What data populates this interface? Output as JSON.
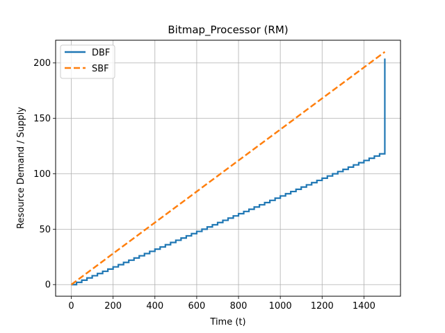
{
  "chart_data": {
    "type": "line",
    "title": "Bitmap_Processor (RM)",
    "xlabel": "Time (t)",
    "ylabel": "Resource Demand / Supply",
    "xlim": [
      -75,
      1575
    ],
    "ylim": [
      -10.5,
      220.5
    ],
    "x_ticks": [
      0,
      200,
      400,
      600,
      800,
      1000,
      1200,
      1400
    ],
    "y_ticks": [
      0,
      50,
      100,
      150,
      200
    ],
    "grid": true,
    "legend_position": "upper left",
    "series": [
      {
        "name": "DBF",
        "style": "step",
        "color": "#1f77b4",
        "step_interval": 25,
        "increments": [
          2,
          2,
          2,
          2,
          2,
          2
        ],
        "x_end": 1500,
        "y_end": 204
      },
      {
        "name": "SBF",
        "style": "dashed",
        "color": "#ff7f0e",
        "x": [
          0,
          1500
        ],
        "values": [
          0,
          210
        ]
      }
    ]
  }
}
